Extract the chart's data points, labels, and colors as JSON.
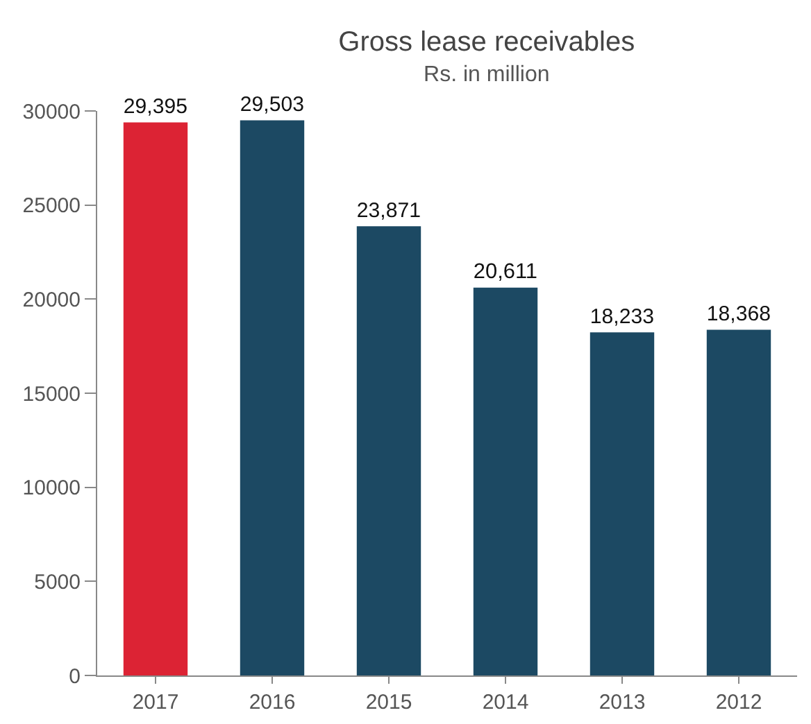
{
  "chart_data": {
    "type": "bar",
    "title": "Gross lease receivables",
    "subtitle": "Rs. in million",
    "categories": [
      "2017",
      "2016",
      "2015",
      "2014",
      "2013",
      "2012"
    ],
    "values": [
      29395,
      29503,
      23871,
      20611,
      18233,
      18368
    ],
    "colors": [
      "#dc2334",
      "#1c4963",
      "#1c4963",
      "#1c4963",
      "#1c4963",
      "#1c4963"
    ],
    "ylim": [
      0,
      30000
    ],
    "yticks": [
      0,
      5000,
      10000,
      15000,
      20000,
      25000,
      30000
    ],
    "value_labels": [
      "29,395",
      "29,503",
      "23,871",
      "20,611",
      "18,233",
      "18,368"
    ],
    "grid": false
  }
}
